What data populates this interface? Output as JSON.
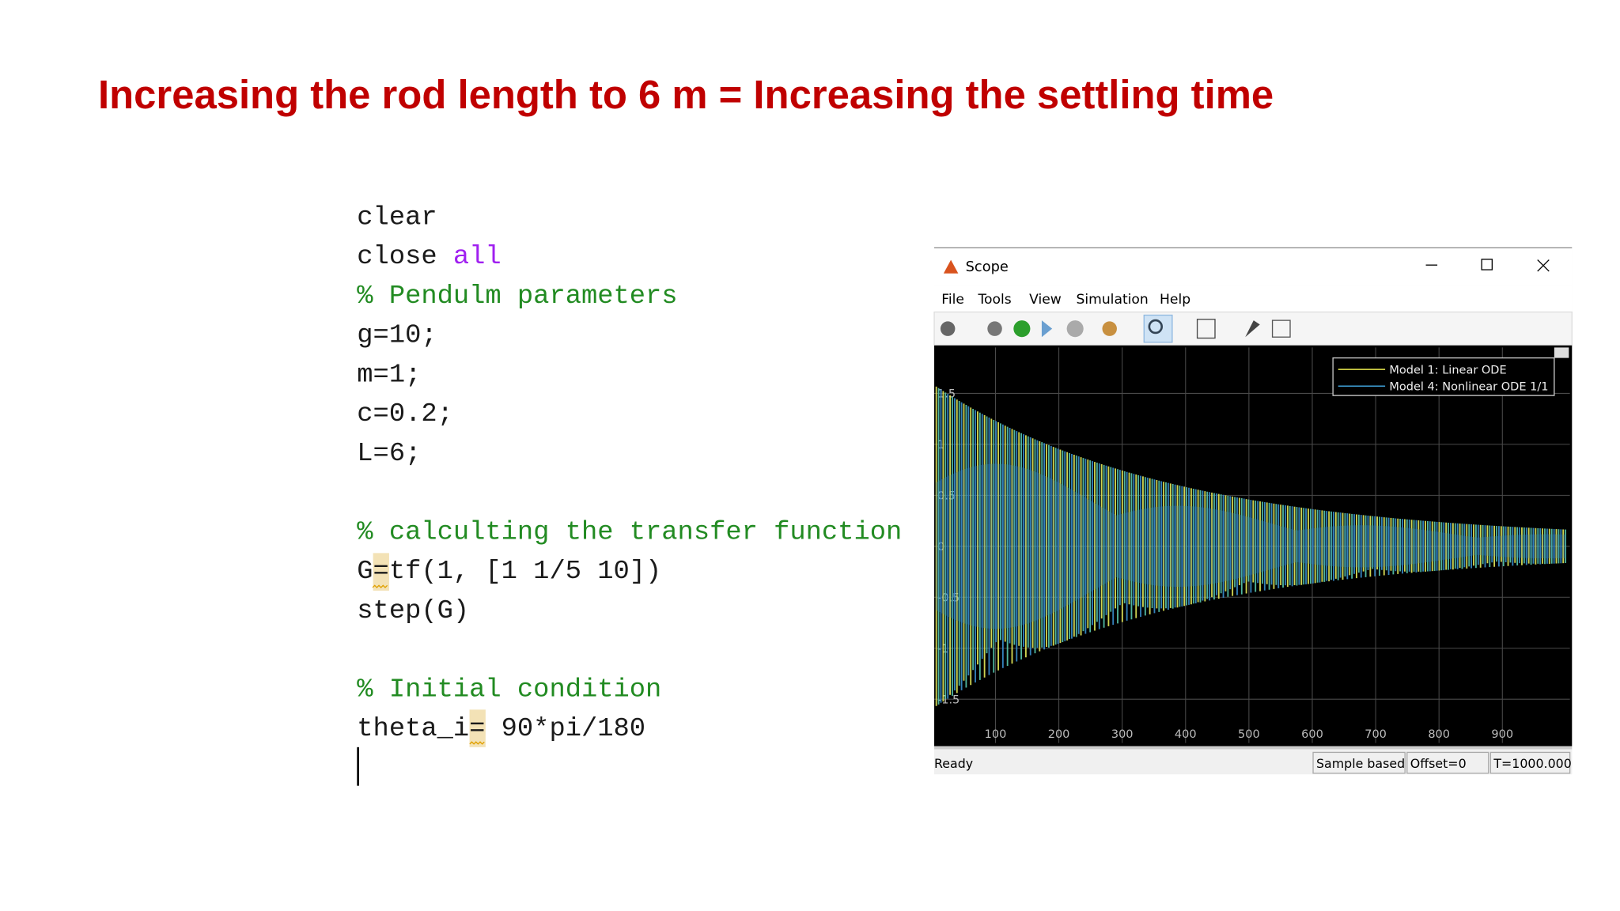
{
  "title": "Increasing the rod length to 6 m = Increasing the settling time",
  "code": {
    "colors": {
      "code": "#1a1a1a",
      "comment": "#228b22",
      "keyword": "#a020f0"
    },
    "lines": [
      [
        {
          "text": "clear",
          "kind": "code"
        }
      ],
      [
        {
          "text": "close ",
          "kind": "code"
        },
        {
          "text": "all",
          "kind": "keyword"
        }
      ],
      [
        {
          "text": "% Pendulm parameters",
          "kind": "comment"
        }
      ],
      [
        {
          "text": "g=10;",
          "kind": "code"
        }
      ],
      [
        {
          "text": "m=1;",
          "kind": "code"
        }
      ],
      [
        {
          "text": "c=0.2;",
          "kind": "code"
        }
      ],
      [
        {
          "text": "L=6;",
          "kind": "code"
        }
      ],
      [],
      [
        {
          "text": "% calculting the transfer function",
          "kind": "comment"
        }
      ],
      [
        {
          "text": "G=tf(1, [1 1/5 10])",
          "kind": "code"
        }
      ],
      [
        {
          "text": "step(G)",
          "kind": "code"
        }
      ],
      [],
      [
        {
          "text": "% Initial condition",
          "kind": "comment"
        }
      ],
      [
        {
          "text": "theta_i= 90*pi/180",
          "kind": "code"
        }
      ]
    ]
  },
  "scope": {
    "window_title": "Scope",
    "menu": [
      "File",
      "Tools",
      "View",
      "Simulation",
      "Help"
    ],
    "status": "Ready",
    "status_fields": [
      "Sample based",
      "Offset=0",
      "T=1000.000"
    ],
    "chart_data": {
      "type": "line",
      "xlim": [
        0,
        1000
      ],
      "xticks": [
        100,
        200,
        300,
        400,
        500,
        600,
        700,
        800,
        900
      ],
      "ylim": [
        -1.95,
        1.95
      ],
      "yticks": [
        -1.5,
        -1,
        -0.5,
        0,
        0.5,
        1,
        1.5
      ],
      "grid": true,
      "legend": "upper right",
      "series": [
        {
          "name": "Model 1: Linear ODE",
          "color": "#e8e84e"
        },
        {
          "name": "Model 4: Nonlinear ODE 1/1",
          "color": "#3fa0d8"
        }
      ]
    }
  }
}
